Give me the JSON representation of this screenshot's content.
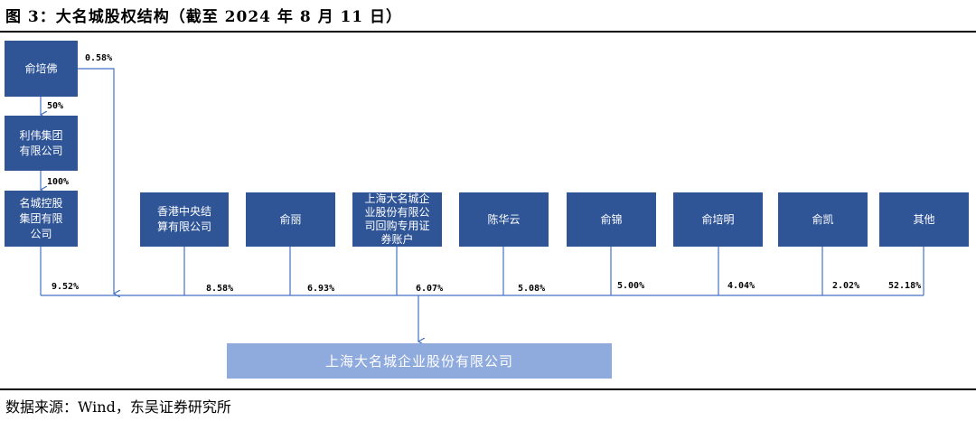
{
  "title": "图 3：大名城股权结构（截至 2024 年 8 月 11 日）",
  "source": "数据来源：Wind，东吴证券研究所",
  "colors": {
    "box": "#2f5597",
    "target": "#8faadc",
    "line": "#4472c4"
  },
  "chain": {
    "yu_peifo": "俞培佛",
    "yu_peifo_direct_pct": "0.58%",
    "to_liwei_pct": "50%",
    "liwei": "利伟集团有限公司",
    "to_mingcheng_pct": "100%",
    "mingcheng": "名城控股集团有限公司",
    "mingcheng_pct": "9.52%"
  },
  "holders": [
    {
      "name": "香港中央结算有限公司",
      "pct": "8.58%"
    },
    {
      "name": "俞丽",
      "pct": "6.93%"
    },
    {
      "name": "上海大名城企业股份有限公司回购专用证券账户",
      "pct": "6.07%"
    },
    {
      "name": "陈华云",
      "pct": "5.08%"
    },
    {
      "name": "俞锦",
      "pct": "5.00%"
    },
    {
      "name": "俞培明",
      "pct": "4.04%"
    },
    {
      "name": "俞凯",
      "pct": "2.02%"
    },
    {
      "name": "其他",
      "pct": "52.18%"
    }
  ],
  "company": "上海大名城企业股份有限公司"
}
